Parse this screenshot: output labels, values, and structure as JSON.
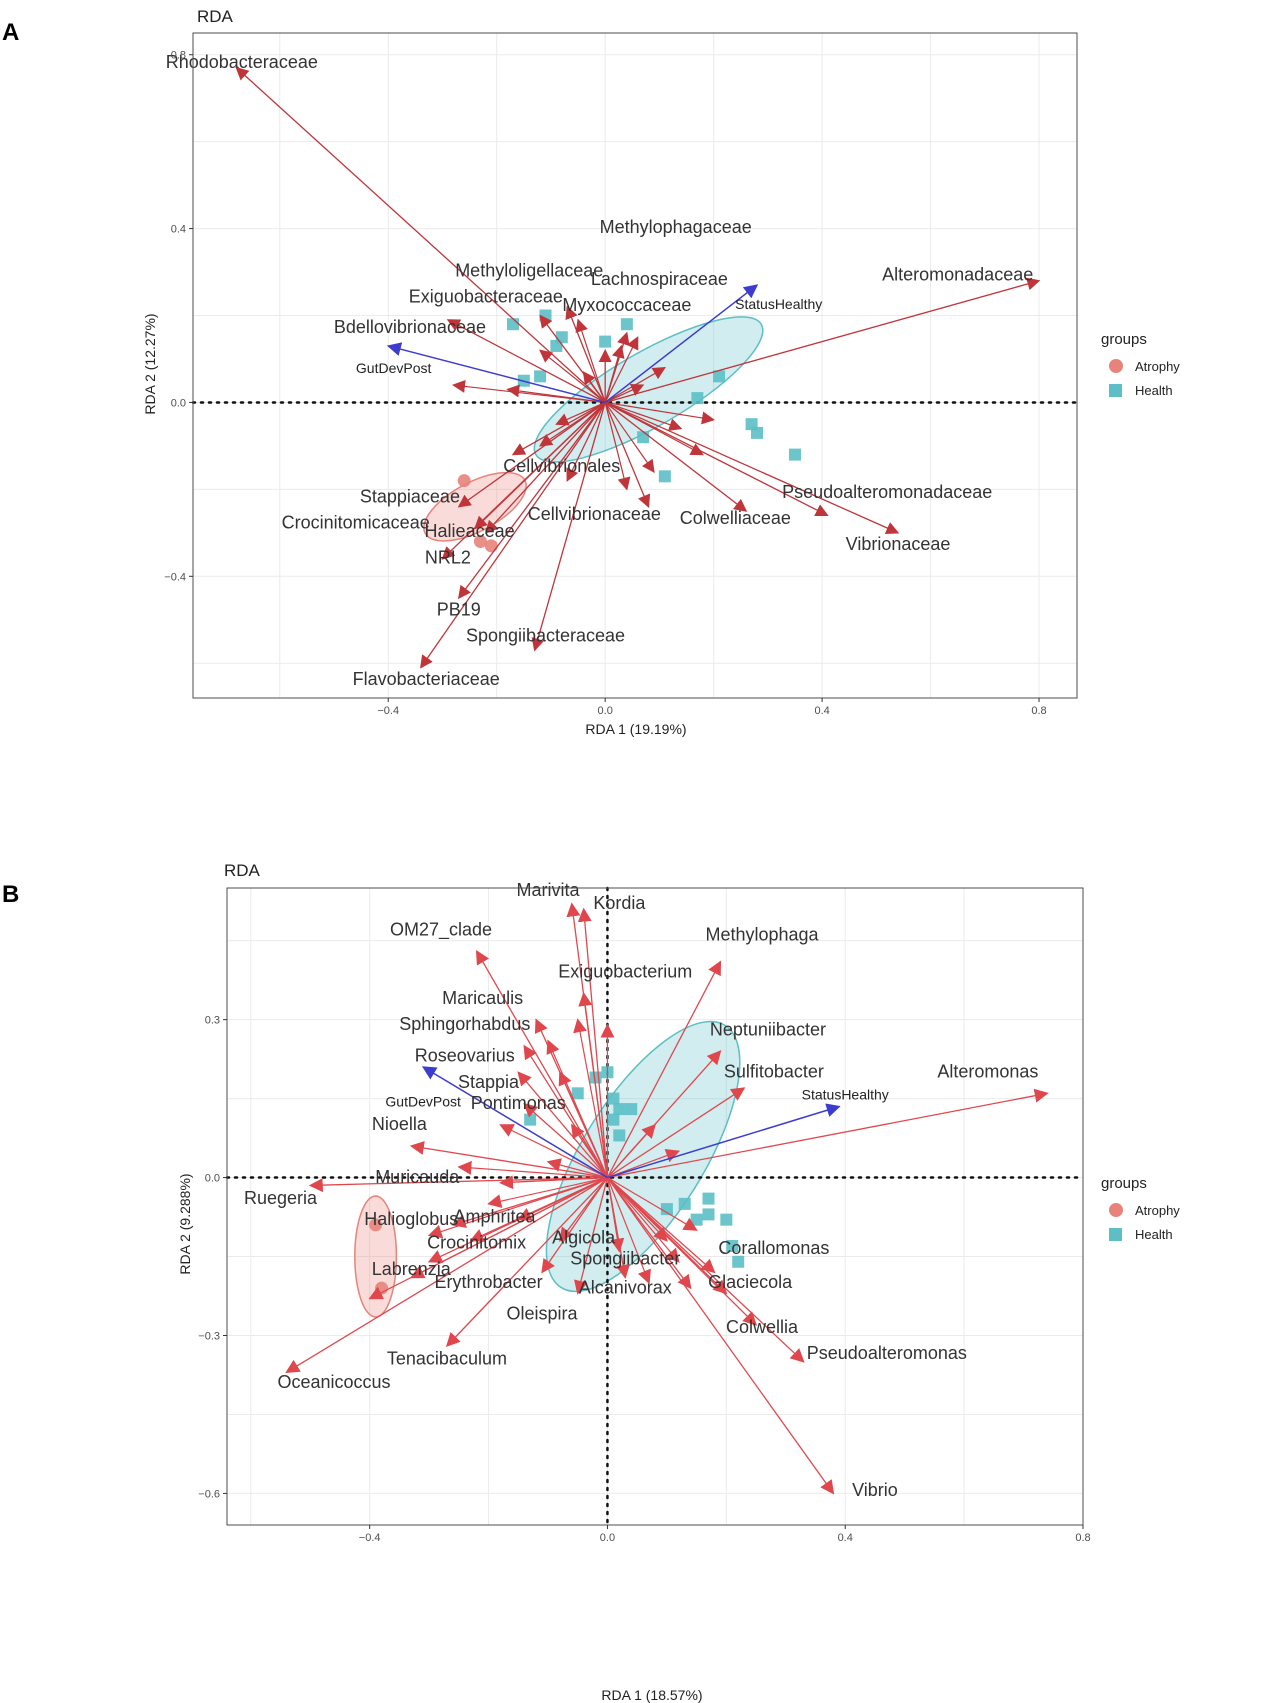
{
  "colors": {
    "atrophy": "#e8837b",
    "health": "#5bbfc5",
    "taxon_arrow": "#c0353a",
    "taxon_arrow_b": "#e0474d",
    "env_arrow": "#3c3ccf",
    "grid": "#ebebeb",
    "frame": "#4d4d4d"
  },
  "chart_data": [
    {
      "type": "scatter",
      "panel": "A",
      "title": "RDA",
      "xlabel": "RDA 1 (19.19%)",
      "ylabel": "RDA 2 (12.27%)",
      "xlim": [
        -0.76,
        0.87
      ],
      "ylim": [
        -0.68,
        0.85
      ],
      "xticks": [
        -0.4,
        0.0,
        0.4,
        0.8
      ],
      "yticks": [
        -0.4,
        0.0,
        0.4,
        0.8
      ],
      "xtick_labels": [
        "−0.4",
        "0.0",
        "0.4",
        "0.8"
      ],
      "ytick_labels": [
        "−0.4",
        "0.0",
        "0.4",
        "0.8"
      ],
      "grid": true,
      "legend": {
        "title": "groups",
        "position": "right",
        "items": [
          "Atrophy",
          "Health"
        ]
      },
      "points": {
        "Atrophy": [
          [
            -0.26,
            -0.18
          ],
          [
            -0.23,
            -0.32
          ],
          [
            -0.21,
            -0.33
          ]
        ],
        "Health": [
          [
            -0.17,
            0.18
          ],
          [
            -0.11,
            0.2
          ],
          [
            -0.08,
            0.15
          ],
          [
            -0.09,
            0.13
          ],
          [
            0.0,
            0.14
          ],
          [
            0.04,
            0.18
          ],
          [
            -0.15,
            0.05
          ],
          [
            -0.12,
            0.06
          ],
          [
            0.21,
            0.06
          ],
          [
            0.17,
            0.01
          ],
          [
            0.07,
            -0.08
          ],
          [
            0.11,
            -0.17
          ],
          [
            0.27,
            -0.05
          ],
          [
            0.28,
            -0.07
          ],
          [
            0.35,
            -0.12
          ]
        ]
      },
      "ellipses": [
        {
          "group": "Atrophy",
          "cx": -0.24,
          "cy": -0.24,
          "rx": 0.045,
          "ry": 0.13,
          "angle": 62
        },
        {
          "group": "Health",
          "cx": 0.08,
          "cy": 0.03,
          "rx": 0.24,
          "ry": 0.085,
          "angle": -30
        }
      ],
      "taxa": [
        {
          "name": "Rhodobacteraceae",
          "x": -0.68,
          "y": 0.77,
          "lx": -0.67,
          "ly": 0.77
        },
        {
          "name": "Methylophagaceae",
          "x": 0.04,
          "y": 0.16,
          "lx": 0.13,
          "ly": 0.39
        },
        {
          "name": "Methyloligellaceae",
          "x": -0.07,
          "y": 0.22,
          "lx": -0.14,
          "ly": 0.29
        },
        {
          "name": "Lachnospiraceae",
          "x": 0.03,
          "y": 0.13,
          "lx": 0.1,
          "ly": 0.27
        },
        {
          "name": "Myxococcaceae",
          "x": 0.0,
          "y": 0.12,
          "lx": 0.04,
          "ly": 0.21
        },
        {
          "name": "Exiguobacteraceae",
          "x": -0.12,
          "y": 0.2,
          "lx": -0.22,
          "ly": 0.23
        },
        {
          "name": "Bdellovibrionaceae",
          "x": -0.29,
          "y": 0.19,
          "lx": -0.36,
          "ly": 0.16
        },
        {
          "name": "Alteromonadaceae",
          "x": 0.8,
          "y": 0.28,
          "lx": 0.65,
          "ly": 0.28
        },
        {
          "name": "Cellvibrionales",
          "x": -0.17,
          "y": -0.12,
          "lx": -0.08,
          "ly": -0.16
        },
        {
          "name": "Stappiaceae",
          "x": -0.27,
          "y": -0.24,
          "lx": -0.36,
          "ly": -0.23
        },
        {
          "name": "Crocinitomicaceae",
          "x": -0.24,
          "y": -0.29,
          "lx": -0.46,
          "ly": -0.29
        },
        {
          "name": "Halieaceae",
          "x": -0.22,
          "y": -0.3,
          "lx": -0.25,
          "ly": -0.31
        },
        {
          "name": "NRL2",
          "x": -0.3,
          "y": -0.36,
          "lx": -0.29,
          "ly": -0.37
        },
        {
          "name": "PB19",
          "x": -0.27,
          "y": -0.45,
          "lx": -0.27,
          "ly": -0.49
        },
        {
          "name": "Spongiibacteraceae",
          "x": -0.13,
          "y": -0.57,
          "lx": -0.11,
          "ly": -0.55
        },
        {
          "name": "Flavobacteriaceae",
          "x": -0.34,
          "y": -0.61,
          "lx": -0.33,
          "ly": -0.65
        },
        {
          "name": "Cellvibrionaceae",
          "x": 0.08,
          "y": -0.24,
          "lx": -0.02,
          "ly": -0.27
        },
        {
          "name": "Colwelliaceae",
          "x": 0.26,
          "y": -0.25,
          "lx": 0.24,
          "ly": -0.28
        },
        {
          "name": "Pseudoalteromonadaceae",
          "x": 0.41,
          "y": -0.26,
          "lx": 0.52,
          "ly": -0.22
        },
        {
          "name": "Vibrionaceae",
          "x": 0.54,
          "y": -0.3,
          "lx": 0.54,
          "ly": -0.34
        }
      ],
      "extra_arrows": [
        [
          -0.28,
          0.04
        ],
        [
          -0.18,
          0.03
        ],
        [
          -0.12,
          0.12
        ],
        [
          -0.05,
          0.19
        ],
        [
          0.06,
          0.15
        ],
        [
          0.11,
          0.08
        ],
        [
          0.14,
          -0.06
        ],
        [
          0.18,
          -0.12
        ],
        [
          0.09,
          -0.16
        ],
        [
          0.04,
          -0.2
        ],
        [
          -0.07,
          -0.18
        ],
        [
          -0.12,
          -0.1
        ],
        [
          -0.09,
          -0.05
        ],
        [
          0.2,
          -0.04
        ],
        [
          0.07,
          0.04
        ],
        [
          -0.04,
          0.07
        ]
      ],
      "env_vectors": [
        {
          "name": "StatusHealthy",
          "x": 0.28,
          "y": 0.27,
          "lx": 0.32,
          "ly": 0.215
        },
        {
          "name": "GutDevPost",
          "x": -0.4,
          "y": 0.13,
          "lx": -0.39,
          "ly": 0.068
        }
      ]
    },
    {
      "type": "scatter",
      "panel": "B",
      "title": "RDA",
      "xlabel": "RDA 1 (18.57%)",
      "ylabel": "RDA 2 (9.288%)",
      "xlim": [
        -0.64,
        0.8
      ],
      "ylim": [
        -0.66,
        0.55
      ],
      "xticks": [
        -0.4,
        0.0,
        0.4,
        0.8
      ],
      "yticks": [
        -0.6,
        -0.3,
        0.0,
        0.3
      ],
      "xtick_labels": [
        "−0.4",
        "0.0",
        "0.4",
        "0.8"
      ],
      "ytick_labels": [
        "−0.6",
        "−0.3",
        "0.0",
        "0.3"
      ],
      "grid": true,
      "legend": {
        "title": "groups",
        "position": "right",
        "items": [
          "Atrophy",
          "Health"
        ]
      },
      "points": {
        "Atrophy": [
          [
            -0.39,
            -0.09
          ],
          [
            -0.38,
            -0.21
          ]
        ],
        "Health": [
          [
            -0.13,
            0.11
          ],
          [
            -0.05,
            0.16
          ],
          [
            -0.02,
            0.19
          ],
          [
            0.0,
            0.2
          ],
          [
            0.01,
            0.15
          ],
          [
            0.02,
            0.13
          ],
          [
            0.04,
            0.13
          ],
          [
            0.01,
            0.11
          ],
          [
            0.02,
            0.08
          ],
          [
            0.1,
            -0.06
          ],
          [
            0.13,
            -0.05
          ],
          [
            0.15,
            -0.08
          ],
          [
            0.17,
            -0.07
          ],
          [
            0.2,
            -0.08
          ],
          [
            0.21,
            -0.13
          ],
          [
            0.22,
            -0.16
          ],
          [
            0.17,
            -0.04
          ]
        ]
      },
      "ellipses": [
        {
          "group": "Atrophy",
          "cx": -0.39,
          "cy": -0.15,
          "rx": 0.035,
          "ry": 0.115,
          "angle": 0
        },
        {
          "group": "Health",
          "cx": 0.06,
          "cy": 0.04,
          "rx": 0.26,
          "ry": 0.115,
          "angle": -58
        }
      ],
      "taxa": [
        {
          "name": "Marivita",
          "x": -0.06,
          "y": 0.52,
          "lx": -0.1,
          "ly": 0.535
        },
        {
          "name": "Kordia",
          "x": -0.04,
          "y": 0.51,
          "lx": 0.02,
          "ly": 0.51
        },
        {
          "name": "OM27_clade",
          "x": -0.22,
          "y": 0.43,
          "lx": -0.28,
          "ly": 0.46
        },
        {
          "name": "Methylophaga",
          "x": 0.19,
          "y": 0.41,
          "lx": 0.26,
          "ly": 0.45
        },
        {
          "name": "Exiguobacterium",
          "x": -0.04,
          "y": 0.35,
          "lx": 0.03,
          "ly": 0.38
        },
        {
          "name": "Maricaulis",
          "x": -0.12,
          "y": 0.3,
          "lx": -0.21,
          "ly": 0.33
        },
        {
          "name": "Sphingorhabdus",
          "x": -0.14,
          "y": 0.25,
          "lx": -0.24,
          "ly": 0.28
        },
        {
          "name": "Roseovarius",
          "x": -0.15,
          "y": 0.2,
          "lx": -0.24,
          "ly": 0.22
        },
        {
          "name": "Neptuniibacter",
          "x": 0.19,
          "y": 0.24,
          "lx": 0.27,
          "ly": 0.27
        },
        {
          "name": "Sulfitobacter",
          "x": 0.23,
          "y": 0.17,
          "lx": 0.28,
          "ly": 0.19
        },
        {
          "name": "Alteromonas",
          "x": 0.74,
          "y": 0.16,
          "lx": 0.64,
          "ly": 0.19
        },
        {
          "name": "Stappia",
          "x": -0.14,
          "y": 0.14,
          "lx": -0.2,
          "ly": 0.17
        },
        {
          "name": "Pontimonas",
          "x": -0.06,
          "y": 0.1,
          "lx": -0.15,
          "ly": 0.13
        },
        {
          "name": "Nioella",
          "x": -0.33,
          "y": 0.06,
          "lx": -0.35,
          "ly": 0.09
        },
        {
          "name": "Muricauda",
          "x": -0.18,
          "y": -0.01,
          "lx": -0.32,
          "ly": -0.01
        },
        {
          "name": "Ruegeria",
          "x": -0.5,
          "y": -0.015,
          "lx": -0.55,
          "ly": -0.05
        },
        {
          "name": "Halioglobus",
          "x": -0.26,
          "y": -0.09,
          "lx": -0.33,
          "ly": -0.09
        },
        {
          "name": "Amphritea",
          "x": -0.23,
          "y": -0.12,
          "lx": -0.19,
          "ly": -0.085
        },
        {
          "name": "Crocinitomix",
          "x": -0.3,
          "y": -0.16,
          "lx": -0.22,
          "ly": -0.135
        },
        {
          "name": "Algicola",
          "x": -0.08,
          "y": -0.12,
          "lx": -0.04,
          "ly": -0.125
        },
        {
          "name": "Labrenzia",
          "x": -0.33,
          "y": -0.19,
          "lx": -0.33,
          "ly": -0.185
        },
        {
          "name": "Spongiibacter",
          "x": 0.03,
          "y": -0.19,
          "lx": 0.03,
          "ly": -0.165
        },
        {
          "name": "Corallomonas",
          "x": 0.18,
          "y": -0.18,
          "lx": 0.28,
          "ly": -0.145
        },
        {
          "name": "Erythrobacter",
          "x": -0.11,
          "y": -0.18,
          "lx": -0.2,
          "ly": -0.21
        },
        {
          "name": "Alcanivorax",
          "x": 0.14,
          "y": -0.21,
          "lx": 0.03,
          "ly": -0.22
        },
        {
          "name": "Glaciecola",
          "x": 0.2,
          "y": -0.22,
          "lx": 0.24,
          "ly": -0.21
        },
        {
          "name": "Oleispira",
          "x": -0.05,
          "y": -0.22,
          "lx": -0.11,
          "ly": -0.27
        },
        {
          "name": "Colwellia",
          "x": 0.25,
          "y": -0.28,
          "lx": 0.26,
          "ly": -0.295
        },
        {
          "name": "Pseudoalteromonas",
          "x": 0.33,
          "y": -0.35,
          "lx": 0.47,
          "ly": -0.345
        },
        {
          "name": "Tenacibaculum",
          "x": -0.27,
          "y": -0.32,
          "lx": -0.27,
          "ly": -0.355
        },
        {
          "name": "Oceanicoccus",
          "x": -0.54,
          "y": -0.37,
          "lx": -0.46,
          "ly": -0.4
        },
        {
          "name": "Vibrio",
          "x": 0.38,
          "y": -0.6,
          "lx": 0.45,
          "ly": -0.605
        }
      ],
      "extra_arrows": [
        [
          -0.1,
          0.26
        ],
        [
          -0.05,
          0.3
        ],
        [
          0.0,
          0.29
        ],
        [
          -0.18,
          0.1
        ],
        [
          -0.25,
          0.02
        ],
        [
          -0.1,
          0.03
        ],
        [
          -0.2,
          -0.05
        ],
        [
          -0.15,
          -0.08
        ],
        [
          0.08,
          0.1
        ],
        [
          0.12,
          0.05
        ],
        [
          0.1,
          -0.12
        ],
        [
          0.12,
          -0.16
        ],
        [
          0.07,
          -0.2
        ],
        [
          0.02,
          -0.14
        ],
        [
          -0.3,
          -0.11
        ],
        [
          -0.4,
          -0.23
        ],
        [
          0.15,
          -0.1
        ],
        [
          -0.08,
          0.2
        ]
      ],
      "env_vectors": [
        {
          "name": "StatusHealthy",
          "x": 0.39,
          "y": 0.135,
          "lx": 0.4,
          "ly": 0.148
        },
        {
          "name": "GutDevPost",
          "x": -0.31,
          "y": 0.21,
          "lx": -0.31,
          "ly": 0.135
        }
      ]
    }
  ],
  "panels": [
    {
      "letter": "A",
      "legend_title": "groups",
      "legend_items": [
        "Atrophy",
        "Health"
      ]
    },
    {
      "letter": "B",
      "legend_title": "groups",
      "legend_items": [
        "Atrophy",
        "Health"
      ]
    }
  ]
}
